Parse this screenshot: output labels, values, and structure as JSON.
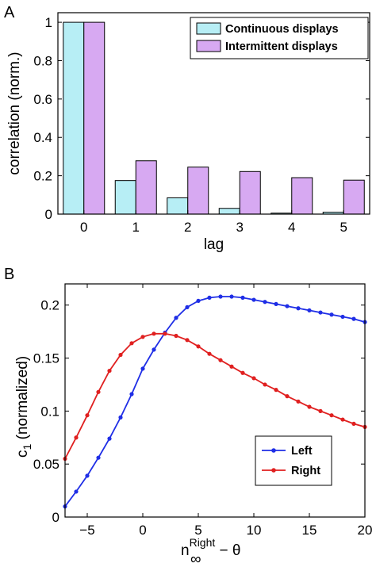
{
  "chart_data": [
    {
      "panel_label": "A",
      "type": "bar",
      "categories": [
        "0",
        "1",
        "2",
        "3",
        "4",
        "5"
      ],
      "series": [
        {
          "name": "Continuous displays",
          "color": "#b7eef5",
          "values": [
            1.0,
            0.175,
            0.085,
            0.03,
            0.005,
            0.01
          ]
        },
        {
          "name": "Intermittent displays",
          "color": "#d7a9f2",
          "values": [
            1.0,
            0.278,
            0.245,
            0.222,
            0.19,
            0.177
          ]
        }
      ],
      "xlabel": "lag",
      "ylabel": "correlation (norm.)",
      "ylim": [
        0,
        1.05
      ],
      "yticks": [
        0,
        0.2,
        0.4,
        0.6,
        0.8,
        1
      ],
      "ytick_labels": [
        "0",
        "0.2",
        "0.4",
        "0.6",
        "0.8",
        "1"
      ],
      "legend_position": "top-right",
      "grid": false
    },
    {
      "panel_label": "B",
      "type": "line",
      "series": [
        {
          "name": "Left",
          "color": "#1f2ee6",
          "x": [
            -7,
            -6,
            -5,
            -4,
            -3,
            -2,
            -1,
            0,
            1,
            2,
            3,
            4,
            5,
            6,
            7,
            8,
            9,
            10,
            11,
            12,
            13,
            14,
            15,
            16,
            17,
            18,
            19,
            20
          ],
          "y": [
            0.01,
            0.024,
            0.039,
            0.056,
            0.074,
            0.094,
            0.116,
            0.14,
            0.158,
            0.174,
            0.188,
            0.198,
            0.204,
            0.207,
            0.208,
            0.208,
            0.207,
            0.205,
            0.203,
            0.201,
            0.199,
            0.197,
            0.195,
            0.193,
            0.191,
            0.189,
            0.187,
            0.184
          ]
        },
        {
          "name": "Right",
          "color": "#e02020",
          "x": [
            -7,
            -6,
            -5,
            -4,
            -3,
            -2,
            -1,
            0,
            1,
            2,
            3,
            4,
            5,
            6,
            7,
            8,
            9,
            10,
            11,
            12,
            13,
            14,
            15,
            16,
            17,
            18,
            19,
            20
          ],
          "y": [
            0.055,
            0.075,
            0.096,
            0.118,
            0.138,
            0.153,
            0.164,
            0.17,
            0.173,
            0.173,
            0.171,
            0.167,
            0.161,
            0.154,
            0.148,
            0.142,
            0.136,
            0.131,
            0.125,
            0.12,
            0.114,
            0.109,
            0.104,
            0.1,
            0.096,
            0.092,
            0.088,
            0.085
          ]
        }
      ],
      "xlabel_main": "n",
      "xlabel_sub": "∞",
      "xlabel_sup": "Right",
      "xlabel_rest": " − θ",
      "ylabel": "c",
      "ylabel_sub": "1",
      "ylabel_rest": " (normalized)",
      "xlim": [
        -7,
        20
      ],
      "ylim": [
        0,
        0.22
      ],
      "xticks": [
        -5,
        0,
        5,
        10,
        15,
        20
      ],
      "xtick_labels": [
        "−5",
        "0",
        "5",
        "10",
        "15",
        "20"
      ],
      "yticks": [
        0,
        0.05,
        0.1,
        0.15,
        0.2
      ],
      "ytick_labels": [
        "0",
        "0.05",
        "0.1",
        "0.15",
        "0.2"
      ],
      "legend_position": "lower-right",
      "grid": false
    }
  ]
}
